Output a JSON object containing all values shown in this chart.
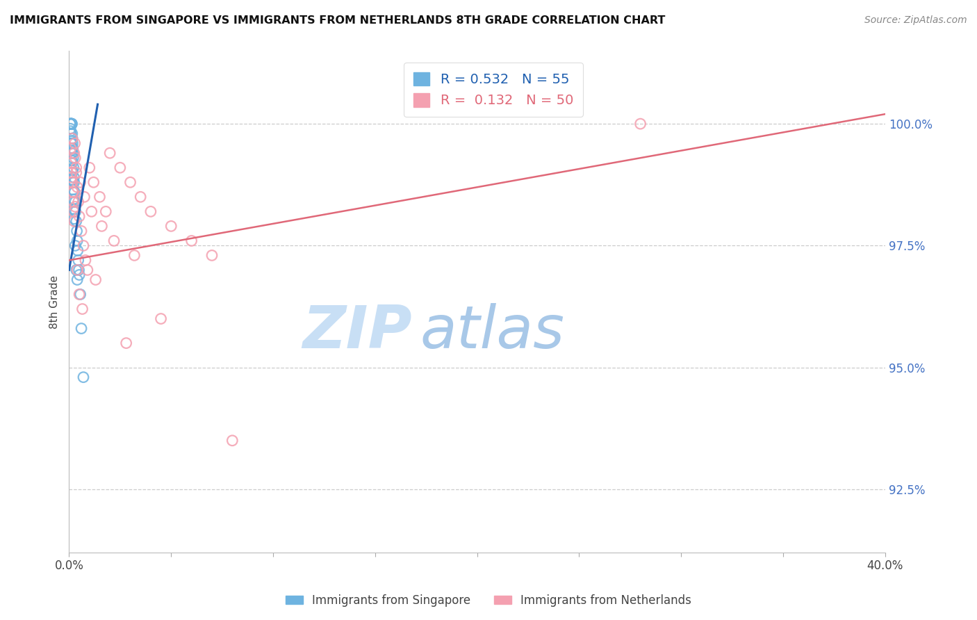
{
  "title": "IMMIGRANTS FROM SINGAPORE VS IMMIGRANTS FROM NETHERLANDS 8TH GRADE CORRELATION CHART",
  "source": "Source: ZipAtlas.com",
  "ylabel": "8th Grade",
  "ylabel_values": [
    92.5,
    95.0,
    97.5,
    100.0
  ],
  "xlim": [
    0.0,
    40.0
  ],
  "ylim": [
    91.2,
    101.5
  ],
  "R_singapore": 0.532,
  "R_netherlands": 0.132,
  "N_singapore": 55,
  "N_netherlands": 50,
  "color_singapore": "#6eb3e0",
  "color_netherlands": "#f4a0b0",
  "color_trend_singapore": "#2060b0",
  "color_trend_netherlands": "#e06878",
  "color_ylabel": "#4472c4",
  "watermark_zip": "ZIP",
  "watermark_atlas": "atlas",
  "watermark_color_zip": "#c8dff5",
  "watermark_color_atlas": "#a8c8e8",
  "sg_trend_x": [
    0.0,
    1.4
  ],
  "sg_trend_y": [
    97.0,
    100.4
  ],
  "nl_trend_x": [
    0.0,
    40.0
  ],
  "nl_trend_y": [
    97.2,
    100.2
  ],
  "sg_x": [
    0.05,
    0.06,
    0.07,
    0.08,
    0.09,
    0.1,
    0.11,
    0.12,
    0.13,
    0.14,
    0.15,
    0.16,
    0.17,
    0.18,
    0.19,
    0.2,
    0.22,
    0.24,
    0.25,
    0.27,
    0.3,
    0.32,
    0.35,
    0.38,
    0.4,
    0.42,
    0.45,
    0.48,
    0.5,
    0.55,
    0.06,
    0.08,
    0.1,
    0.12,
    0.14,
    0.16,
    0.18,
    0.2,
    0.22,
    0.24,
    0.07,
    0.09,
    0.11,
    0.13,
    0.15,
    0.17,
    0.19,
    0.21,
    0.23,
    0.25,
    0.3,
    0.35,
    0.4,
    0.6,
    0.7
  ],
  "sg_y": [
    100.0,
    100.0,
    100.0,
    100.0,
    100.0,
    100.0,
    100.0,
    100.0,
    100.0,
    100.0,
    99.8,
    99.7,
    99.6,
    99.5,
    99.4,
    99.3,
    99.1,
    98.9,
    98.8,
    98.6,
    98.4,
    98.2,
    98.0,
    97.8,
    97.6,
    97.4,
    97.2,
    97.0,
    96.9,
    96.5,
    99.9,
    99.8,
    99.6,
    99.4,
    99.2,
    99.0,
    98.8,
    98.6,
    98.4,
    98.2,
    99.85,
    99.65,
    99.45,
    99.25,
    99.05,
    98.85,
    98.65,
    98.45,
    98.25,
    98.05,
    97.5,
    97.0,
    96.8,
    95.8,
    94.8
  ],
  "nl_x": [
    0.08,
    0.1,
    0.12,
    0.15,
    0.18,
    0.2,
    0.22,
    0.25,
    0.28,
    0.3,
    0.35,
    0.4,
    0.45,
    0.5,
    0.6,
    0.7,
    0.8,
    0.9,
    1.0,
    1.2,
    1.5,
    1.8,
    2.0,
    2.5,
    3.0,
    3.5,
    4.0,
    5.0,
    6.0,
    7.0,
    0.15,
    0.25,
    0.35,
    0.55,
    0.75,
    1.1,
    1.6,
    2.2,
    3.2,
    4.5,
    0.1,
    0.2,
    0.3,
    0.5,
    0.65,
    1.3,
    2.8,
    8.0,
    28.0,
    0.4
  ],
  "nl_y": [
    99.5,
    99.2,
    99.0,
    98.8,
    98.6,
    98.4,
    98.2,
    98.0,
    99.6,
    99.3,
    99.0,
    98.7,
    98.4,
    98.1,
    97.8,
    97.5,
    97.2,
    97.0,
    99.1,
    98.8,
    98.5,
    98.2,
    99.4,
    99.1,
    98.8,
    98.5,
    98.2,
    97.9,
    97.6,
    97.3,
    99.7,
    99.4,
    99.1,
    98.8,
    98.5,
    98.2,
    97.9,
    97.6,
    97.3,
    96.0,
    98.9,
    98.6,
    98.3,
    96.5,
    96.2,
    96.8,
    95.5,
    93.5,
    100.0,
    97.0
  ]
}
